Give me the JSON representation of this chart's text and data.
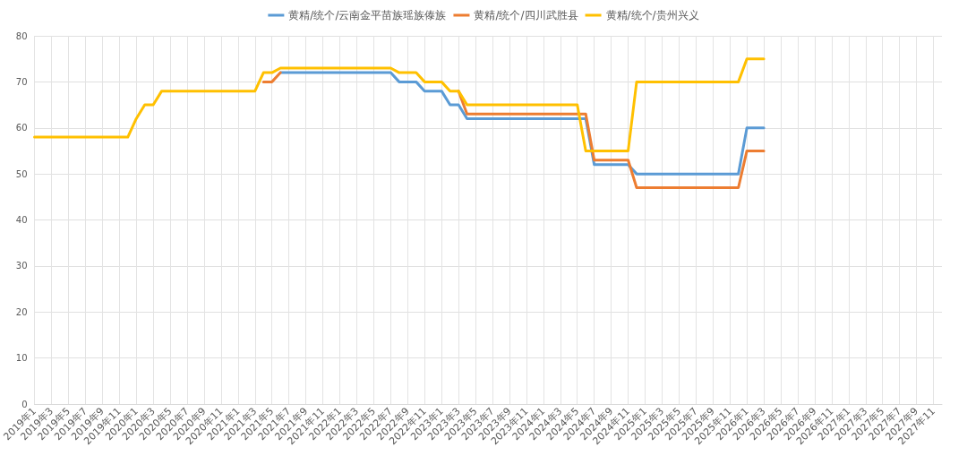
{
  "chart_data": {
    "type": "line",
    "categories": [
      "2019年1",
      null,
      "2019年3",
      null,
      "2019年5",
      null,
      "2019年7",
      null,
      "2019年9",
      null,
      "2019年11",
      null,
      "2020年1",
      null,
      "2020年3",
      null,
      "2020年5",
      null,
      "2020年7",
      null,
      "2020年9",
      null,
      "2020年11",
      null,
      "2021年1",
      null,
      "2021年3",
      null,
      "2021年5",
      null,
      "2021年7",
      null,
      "2021年9",
      null,
      "2021年11",
      null,
      "2022年1",
      null,
      "2022年3",
      null,
      "2022年5",
      null,
      "2022年7",
      null,
      "2022年9",
      null,
      "2022年11",
      null,
      "2023年1",
      null,
      "2023年3",
      null,
      "2023年5",
      null,
      "2023年7",
      null,
      "2023年9",
      null,
      "2023年11",
      null,
      "2024年1",
      null,
      "2024年3",
      null,
      "2024年5",
      null,
      "2024年7",
      null,
      "2024年9",
      null,
      "2024年11",
      null,
      "2025年1",
      null,
      "2025年3",
      null,
      "2025年5",
      null,
      "2025年7",
      null,
      "2025年9",
      null,
      "2025年11",
      null,
      "2026年1",
      null,
      "2026年3",
      null,
      "2026年5",
      null,
      "2026年7",
      null,
      "2026年9",
      null,
      "2026年11",
      null,
      "2027年1",
      null,
      "2027年3",
      null,
      "2027年5",
      null,
      "2027年7",
      null,
      "2027年9",
      null,
      "2027年11",
      null
    ],
    "series": [
      {
        "name": "黄精/统个/云南金平苗族瑶族傣族",
        "color": "#5b9bd5",
        "values": [
          null,
          null,
          null,
          null,
          null,
          null,
          null,
          null,
          null,
          null,
          null,
          null,
          null,
          null,
          null,
          null,
          null,
          null,
          null,
          null,
          null,
          null,
          null,
          null,
          null,
          null,
          null,
          null,
          null,
          72,
          72,
          72,
          72,
          72,
          72,
          72,
          72,
          72,
          72,
          72,
          72,
          72,
          72,
          70,
          70,
          70,
          68,
          68,
          68,
          65,
          65,
          62,
          62,
          62,
          62,
          62,
          62,
          62,
          62,
          62,
          62,
          62,
          62,
          62,
          62,
          62,
          52,
          52,
          52,
          52,
          52,
          50,
          50,
          50,
          50,
          50,
          50,
          50,
          50,
          50,
          50,
          50,
          50,
          50,
          60,
          60,
          60,
          null,
          null,
          null,
          null,
          null,
          null,
          null,
          null,
          null,
          null,
          null,
          null,
          null,
          null,
          null,
          null,
          null,
          null,
          null,
          null,
          null
        ]
      },
      {
        "name": "黄精/统个/四川武胜县",
        "color": "#ed7d31",
        "values": [
          null,
          null,
          null,
          null,
          null,
          null,
          null,
          null,
          null,
          null,
          null,
          null,
          null,
          null,
          null,
          null,
          null,
          null,
          null,
          null,
          null,
          null,
          null,
          null,
          null,
          null,
          null,
          70,
          70,
          72,
          null,
          null,
          null,
          null,
          null,
          null,
          null,
          null,
          null,
          null,
          null,
          null,
          null,
          null,
          null,
          null,
          null,
          null,
          null,
          null,
          68,
          63,
          63,
          63,
          63,
          63,
          63,
          63,
          63,
          63,
          63,
          63,
          63,
          63,
          63,
          63,
          53,
          53,
          53,
          53,
          53,
          47,
          47,
          47,
          47,
          47,
          47,
          47,
          47,
          47,
          47,
          47,
          47,
          47,
          55,
          55,
          55,
          null,
          null,
          null,
          null,
          null,
          null,
          null,
          null,
          null,
          null,
          null,
          null,
          null,
          null,
          null,
          null,
          null,
          null,
          null,
          null,
          null
        ]
      },
      {
        "name": "黄精/统个/贵州兴义",
        "color": "#ffc000",
        "values": [
          58,
          58,
          58,
          58,
          58,
          58,
          58,
          58,
          58,
          58,
          58,
          58,
          62,
          65,
          65,
          68,
          68,
          68,
          68,
          68,
          68,
          68,
          68,
          68,
          68,
          68,
          68,
          72,
          72,
          73,
          73,
          73,
          73,
          73,
          73,
          73,
          73,
          73,
          73,
          73,
          73,
          73,
          73,
          72,
          72,
          72,
          70,
          70,
          70,
          68,
          68,
          65,
          65,
          65,
          65,
          65,
          65,
          65,
          65,
          65,
          65,
          65,
          65,
          65,
          65,
          55,
          55,
          55,
          55,
          55,
          55,
          70,
          70,
          70,
          70,
          70,
          70,
          70,
          70,
          70,
          70,
          70,
          70,
          70,
          75,
          75,
          75,
          null,
          null,
          null,
          null,
          null,
          null,
          null,
          null,
          null,
          null,
          null,
          null,
          null,
          null,
          null,
          null,
          null,
          null,
          null,
          null,
          null
        ]
      }
    ],
    "ylim": [
      0,
      80
    ],
    "yticks": [
      0,
      10,
      20,
      30,
      40,
      50,
      60,
      70,
      80
    ],
    "grid": true,
    "legend": "top",
    "marker": "none",
    "line_style": "solid"
  }
}
